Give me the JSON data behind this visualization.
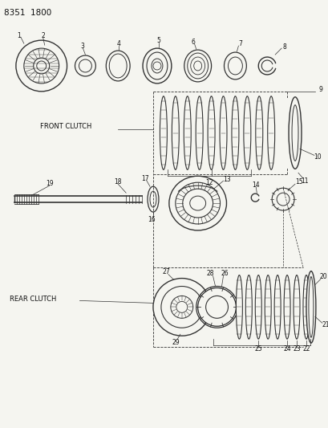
{
  "title": "8351  1800",
  "bg": "#f5f5f0",
  "lc": "#333333",
  "tc": "#111111",
  "front_clutch_label": "FRONT CLUTCH",
  "rear_clutch_label": "REAR CLUTCH",
  "figsize": [
    4.1,
    5.33
  ],
  "dpi": 100
}
